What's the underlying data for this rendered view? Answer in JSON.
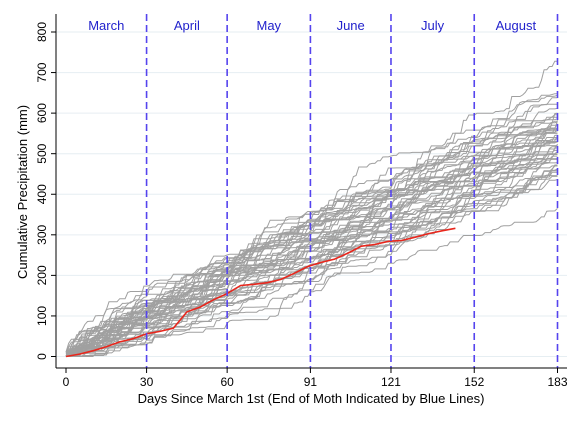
{
  "chart_data": {
    "type": "line",
    "title": "",
    "xlabel": "Days Since March 1st (End of Moth Indicated by Blue Lines)",
    "ylabel": "Cumulative Precipitation (mm)",
    "xlim": [
      0,
      183
    ],
    "ylim": [
      0,
      800
    ],
    "x_ticks": [
      0,
      30,
      60,
      91,
      121,
      152,
      183
    ],
    "y_ticks": [
      0,
      100,
      200,
      300,
      400,
      500,
      600,
      700,
      800
    ],
    "grid": "horizontal",
    "month_boundaries": [
      30,
      60,
      91,
      121,
      152,
      183
    ],
    "months": [
      {
        "label": "March",
        "center": 15
      },
      {
        "label": "April",
        "center": 45
      },
      {
        "label": "May",
        "center": 75.5
      },
      {
        "label": "June",
        "center": 106
      },
      {
        "label": "July",
        "center": 136.5
      },
      {
        "label": "August",
        "center": 167.5
      }
    ],
    "colors": {
      "history": "#a0a0a0",
      "current": "#e8261c",
      "month_lines": "#5544ee",
      "month_labels": "#2222cc",
      "grid": "#e6eef2"
    },
    "history_final_totals": [
      728,
      648,
      644,
      638,
      622,
      612,
      600,
      596,
      590,
      586,
      582,
      578,
      574,
      570,
      566,
      562,
      558,
      554,
      550,
      546,
      540,
      536,
      532,
      528,
      524,
      520,
      514,
      508,
      500,
      494,
      486,
      478,
      470,
      462,
      454,
      446,
      470,
      498,
      520,
      544,
      560,
      580,
      530,
      505,
      488,
      472,
      458,
      444,
      436,
      365
    ],
    "current_year": {
      "x": [
        0,
        5,
        10,
        15,
        20,
        25,
        30,
        35,
        40,
        45,
        50,
        55,
        60,
        65,
        70,
        75,
        80,
        85,
        90,
        95,
        100,
        105,
        110,
        115,
        120,
        125,
        130,
        135,
        140,
        145
      ],
      "y": [
        0,
        6,
        14,
        24,
        36,
        44,
        56,
        62,
        70,
        110,
        122,
        140,
        155,
        175,
        178,
        182,
        190,
        205,
        222,
        232,
        240,
        255,
        272,
        276,
        284,
        286,
        294,
        303,
        310,
        316
      ]
    }
  }
}
